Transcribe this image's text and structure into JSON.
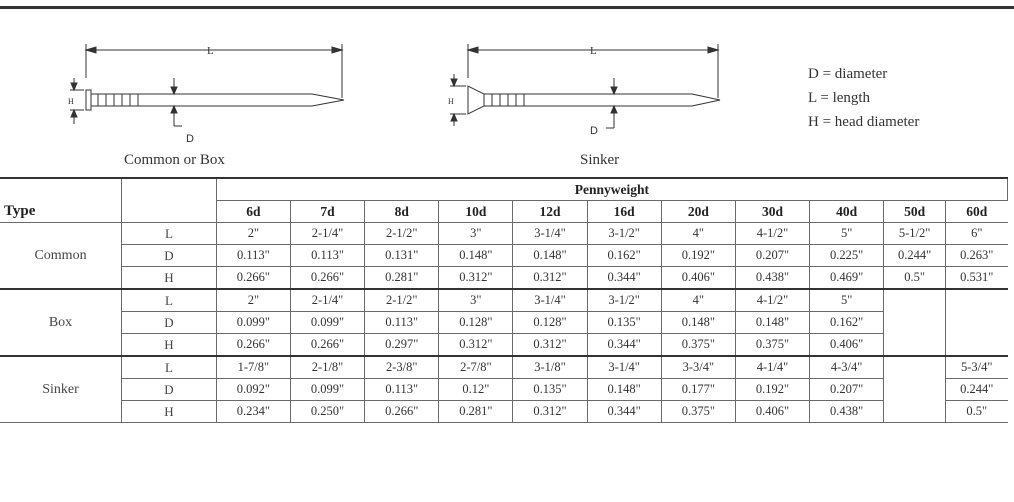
{
  "diagram_common": {
    "length_label": "L",
    "head_label": "H",
    "diameter_label": "D",
    "caption": "Common or Box"
  },
  "diagram_sinker": {
    "length_label": "L",
    "head_label": "H",
    "diameter_label": "D",
    "caption": "Sinker"
  },
  "legend": {
    "d": "D = diameter",
    "l": "L = length",
    "h": "H = head diameter"
  },
  "table": {
    "type_header": "Type",
    "group_header": "Pennyweight",
    "columns": [
      "6d",
      "7d",
      "8d",
      "10d",
      "12d",
      "16d",
      "20d",
      "30d",
      "40d",
      "50d",
      "60d"
    ],
    "groups": [
      {
        "name": "Common",
        "rows": [
          {
            "label": "L",
            "values": [
              "2\"",
              "2-1/4\"",
              "2-1/2\"",
              "3\"",
              "3-1/4\"",
              "3-1/2\"",
              "4\"",
              "4-1/2\"",
              "5\"",
              "5-1/2\"",
              "6\""
            ]
          },
          {
            "label": "D",
            "values": [
              "0.113\"",
              "0.113\"",
              "0.131\"",
              "0.148\"",
              "0.148\"",
              "0.162\"",
              "0.192\"",
              "0.207\"",
              "0.225\"",
              "0.244\"",
              "0.263\""
            ]
          },
          {
            "label": "H",
            "values": [
              "0.266\"",
              "0.266\"",
              "0.281\"",
              "0.312\"",
              "0.312\"",
              "0.344\"",
              "0.406\"",
              "0.438\"",
              "0.469\"",
              "0.5\"",
              "0.531\""
            ]
          }
        ]
      },
      {
        "name": "Box",
        "rows": [
          {
            "label": "L",
            "values": [
              "2\"",
              "2-1/4\"",
              "2-1/2\"",
              "3\"",
              "3-1/4\"",
              "3-1/2\"",
              "4\"",
              "4-1/2\"",
              "5\"",
              "",
              ""
            ]
          },
          {
            "label": "D",
            "values": [
              "0.099\"",
              "0.099\"",
              "0.113\"",
              "0.128\"",
              "0.128\"",
              "0.135\"",
              "0.148\"",
              "0.148\"",
              "0.162\"",
              "",
              ""
            ]
          },
          {
            "label": "H",
            "values": [
              "0.266\"",
              "0.266\"",
              "0.297\"",
              "0.312\"",
              "0.312\"",
              "0.344\"",
              "0.375\"",
              "0.375\"",
              "0.406\"",
              "",
              ""
            ]
          }
        ]
      },
      {
        "name": "Sinker",
        "rows": [
          {
            "label": "L",
            "values": [
              "1-7/8\"",
              "2-1/8\"",
              "2-3/8\"",
              "2-7/8\"",
              "3-1/8\"",
              "3-1/4\"",
              "3-3/4\"",
              "4-1/4\"",
              "4-3/4\"",
              "",
              "5-3/4\""
            ]
          },
          {
            "label": "D",
            "values": [
              "0.092\"",
              "0.099\"",
              "0.113\"",
              "0.12\"",
              "0.135\"",
              "0.148\"",
              "0.177\"",
              "0.192\"",
              "0.207\"",
              "",
              "0.244\""
            ]
          },
          {
            "label": "H",
            "values": [
              "0.234\"",
              "0.250\"",
              "0.266\"",
              "0.281\"",
              "0.312\"",
              "0.344\"",
              "0.375\"",
              "0.406\"",
              "0.438\"",
              "",
              "0.5\""
            ]
          }
        ]
      }
    ]
  }
}
